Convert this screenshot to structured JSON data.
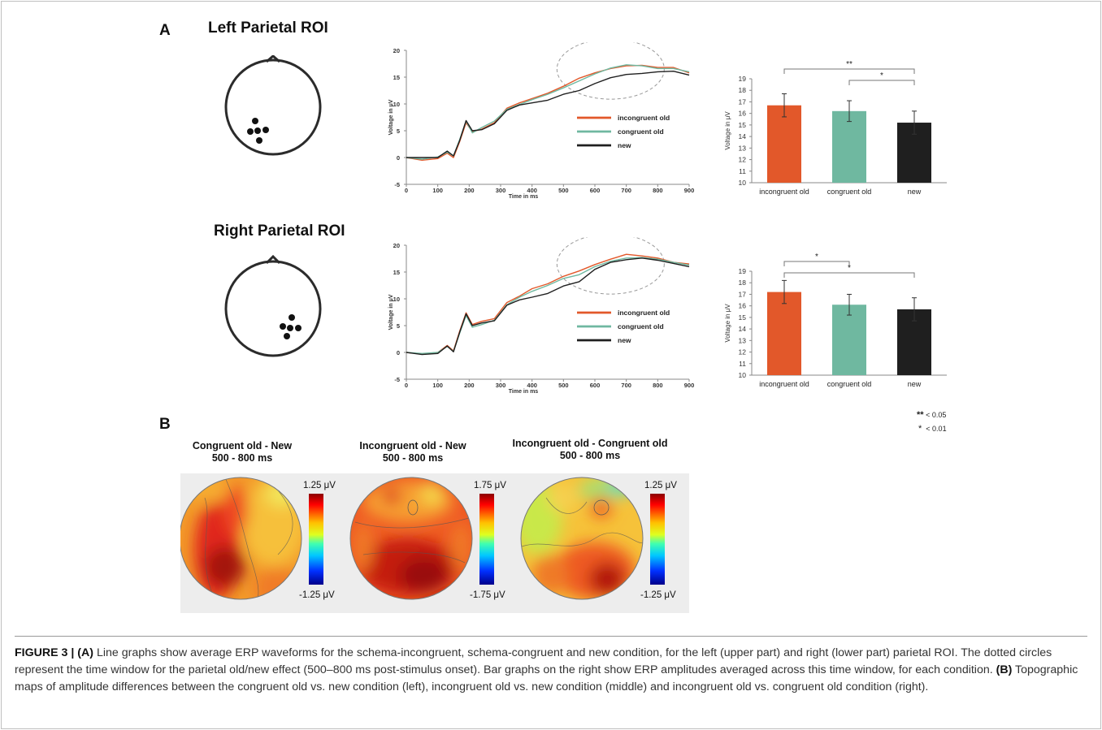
{
  "panel_a": {
    "letter": "A",
    "left_title": "Left Parietal ROI",
    "right_title": "Right Parietal ROI"
  },
  "panel_b": {
    "letter": "B",
    "maps": [
      {
        "title_line1": "Congruent old - New",
        "title_line2": "500 - 800 ms",
        "scale_top": "1.25 μV",
        "scale_bottom": "-1.25 μV"
      },
      {
        "title_line1": "Incongruent old - New",
        "title_line2": "500 - 800 ms",
        "scale_top": "1.75 μV",
        "scale_bottom": "-1.75 μV"
      },
      {
        "title_line1": "Incongruent old - Congruent old",
        "title_line2": "500 - 800 ms",
        "scale_top": "1.25 μV",
        "scale_bottom": "-1.25 μV"
      }
    ]
  },
  "significance_key": {
    "double": "**",
    "double_label": "< 0.05",
    "single": "*",
    "single_label": "< 0.01"
  },
  "colors": {
    "incongruent_old": "#e2582a",
    "congruent_old": "#6fb8a0",
    "new": "#1f1f1f"
  },
  "chart_data": [
    {
      "type": "line",
      "panel": "Left Parietal ROI",
      "xlabel": "Time in ms",
      "ylabel": "Voltage in μV",
      "xlim": [
        0,
        900
      ],
      "ylim": [
        -5,
        20
      ],
      "xticks": [
        "0",
        "100",
        "200",
        "300",
        "400",
        "500",
        "600",
        "700",
        "800",
        "900"
      ],
      "yticks": [
        "-5",
        "0",
        "5",
        "10",
        "15",
        "20"
      ],
      "legend_position": "lower-right",
      "x": [
        0,
        50,
        100,
        130,
        150,
        170,
        190,
        210,
        240,
        280,
        320,
        360,
        400,
        450,
        500,
        550,
        600,
        650,
        700,
        750,
        800,
        850,
        900
      ],
      "series": [
        {
          "name": "incongruent old",
          "color": "#e2582a",
          "values": [
            0,
            -0.5,
            -0.2,
            0.8,
            0,
            3,
            6.5,
            4.8,
            5.3,
            6.5,
            9.2,
            10.2,
            11,
            12,
            13.3,
            14.8,
            15.8,
            16.6,
            17.1,
            17.2,
            16.8,
            16.8,
            15.8
          ]
        },
        {
          "name": "congruent old",
          "color": "#6fb8a0",
          "values": [
            0,
            -0.3,
            0.1,
            1,
            0.3,
            3.4,
            6.8,
            4.6,
            5.6,
            6.8,
            9,
            9.9,
            10.8,
            11.8,
            13,
            14.3,
            15.6,
            16.7,
            17.3,
            17.1,
            16.6,
            16.6,
            16
          ]
        },
        {
          "name": "new",
          "color": "#1f1f1f",
          "values": [
            0,
            0,
            0,
            1.2,
            0.3,
            3.2,
            6.9,
            5,
            5.2,
            6.3,
            8.8,
            9.8,
            10.2,
            10.7,
            11.8,
            12.5,
            13.8,
            14.9,
            15.5,
            15.7,
            16,
            16.1,
            15.4
          ]
        }
      ]
    },
    {
      "type": "bar",
      "panel": "Left Parietal ROI",
      "ylabel": "Voltage in μV",
      "ylim": [
        10,
        19
      ],
      "yticks": [
        "10",
        "11",
        "12",
        "13",
        "14",
        "15",
        "16",
        "17",
        "18",
        "19"
      ],
      "categories": [
        "incongruent old",
        "congruent old",
        "new"
      ],
      "values": [
        16.7,
        16.2,
        15.2
      ],
      "error": [
        1.0,
        0.9,
        1.0
      ],
      "significance": [
        {
          "from": 0,
          "to": 2,
          "label": "**"
        },
        {
          "from": 1,
          "to": 2,
          "label": "*"
        }
      ]
    },
    {
      "type": "line",
      "panel": "Right Parietal ROI",
      "xlabel": "Time in ms",
      "ylabel": "Voltage in μV",
      "xlim": [
        0,
        900
      ],
      "ylim": [
        -5,
        20
      ],
      "xticks": [
        "0",
        "100",
        "200",
        "300",
        "400",
        "500",
        "600",
        "700",
        "800",
        "900"
      ],
      "yticks": [
        "-5",
        "0",
        "5",
        "10",
        "15",
        "20"
      ],
      "legend_position": "lower-right",
      "x": [
        0,
        50,
        100,
        130,
        150,
        170,
        190,
        210,
        240,
        280,
        320,
        360,
        400,
        450,
        500,
        550,
        600,
        650,
        700,
        750,
        800,
        850,
        900
      ],
      "series": [
        {
          "name": "incongruent old",
          "color": "#e2582a",
          "values": [
            0,
            -0.3,
            0,
            1.3,
            0.3,
            4,
            7.4,
            5.2,
            5.8,
            6.3,
            9.3,
            10.5,
            11.9,
            12.8,
            14.2,
            15.2,
            16.4,
            17.4,
            18.3,
            18,
            17.6,
            16.8,
            16.5
          ]
        },
        {
          "name": "congruent old",
          "color": "#6fb8a0",
          "values": [
            0,
            -0.2,
            0,
            1.1,
            0.2,
            3.6,
            6.9,
            4.7,
            5.2,
            6,
            8.9,
            10.3,
            11.4,
            12.5,
            13.8,
            14.5,
            16,
            17,
            17.6,
            17.7,
            17.4,
            16.8,
            16.3
          ]
        },
        {
          "name": "new",
          "color": "#1f1f1f",
          "values": [
            0,
            -0.4,
            -0.2,
            1.2,
            0.1,
            3.8,
            7.2,
            5,
            5.5,
            5.9,
            8.8,
            9.8,
            10.3,
            11,
            12.4,
            13.2,
            15.5,
            16.8,
            17.3,
            17.6,
            17.2,
            16.6,
            16
          ]
        }
      ]
    },
    {
      "type": "bar",
      "panel": "Right Parietal ROI",
      "ylabel": "Voltage in μV",
      "ylim": [
        10,
        19
      ],
      "yticks": [
        "10",
        "11",
        "12",
        "13",
        "14",
        "15",
        "16",
        "17",
        "18",
        "19"
      ],
      "categories": [
        "incongruent old",
        "congruent old",
        "new"
      ],
      "values": [
        17.2,
        16.1,
        15.7
      ],
      "error": [
        1.0,
        0.9,
        1.0
      ],
      "significance": [
        {
          "from": 0,
          "to": 1,
          "label": "*"
        },
        {
          "from": 0,
          "to": 2,
          "label": "*"
        }
      ]
    }
  ],
  "caption": {
    "label": "FIGURE 3 | ",
    "a_marker": "(A)",
    "a_text": " Line graphs show average ERP waveforms for the schema-incongruent, schema-congruent and new condition, for the left (upper part) and right (lower part) parietal ROI. The dotted circles represent the time window for the parietal old/new effect (500–800 ms post-stimulus onset). Bar graphs on the right show ERP amplitudes averaged across this time window, for each condition. ",
    "b_marker": "(B)",
    "b_text": " Topographic maps of amplitude differences between the congruent old vs. new condition (left), incongruent old vs. new condition (middle) and incongruent old vs. congruent old condition (right)."
  }
}
